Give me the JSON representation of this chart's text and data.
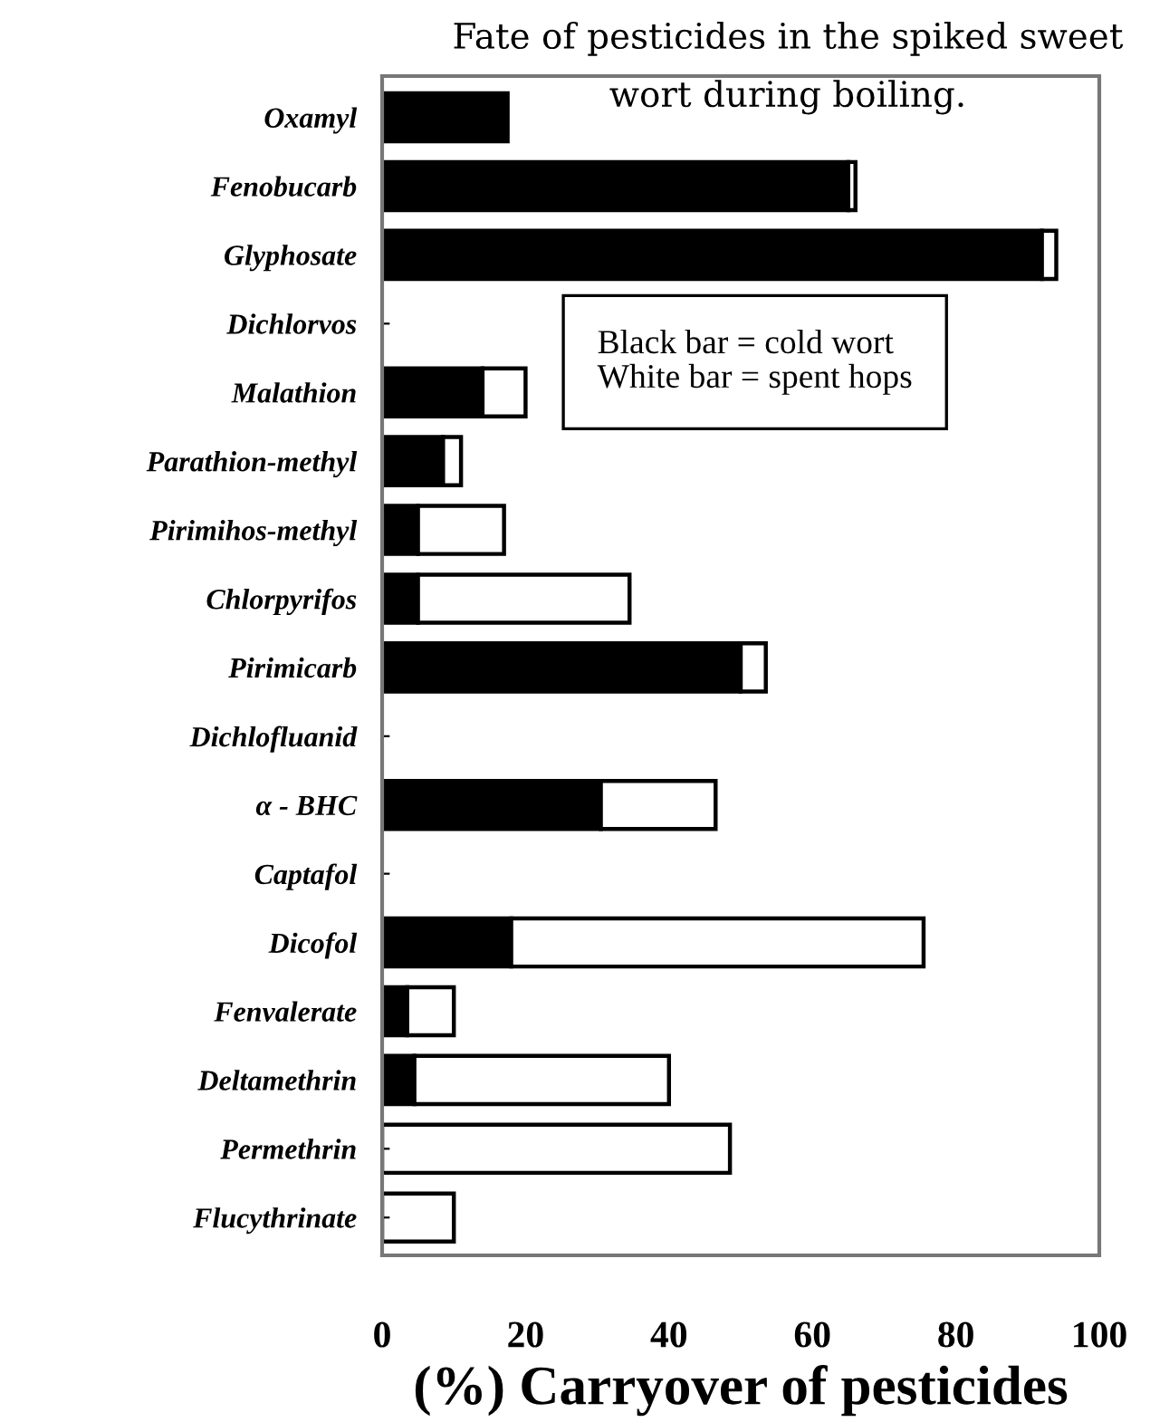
{
  "chart_data": {
    "type": "bar",
    "orientation": "horizontal",
    "stacked": true,
    "title": "Fate of pesticides in the spiked sweet\nwort during boiling.",
    "xlabel": "(%) Carryover of pesticides",
    "categories": [
      "Oxamyl",
      "Fenobucarb",
      "Glyphosate",
      "Dichlorvos",
      "Malathion",
      "Parathion-methyl",
      "Pirimihos-methyl",
      "Chlorpyrifos",
      "Pirimicarb",
      "Dichlofluanid",
      "α - BHC",
      "Captafol",
      "Dicofol",
      "Fenvalerate",
      "Deltamethrin",
      "Permethrin",
      "Flucythrinate"
    ],
    "series": [
      {
        "color": "#000000",
        "values": [
          17.5,
          65,
          92,
          0,
          14,
          8.5,
          5,
          5,
          50,
          0,
          30.5,
          0,
          18,
          3.5,
          4.5,
          0,
          0
        ]
      },
      {
        "color": "#ffffff",
        "values": [
          0,
          1,
          2,
          0,
          6,
          2.5,
          12,
          29.5,
          3.5,
          0,
          16,
          0,
          57.5,
          6.5,
          35.5,
          48.5,
          10
        ]
      }
    ],
    "xlim": [
      0,
      100
    ],
    "xticks": [
      0,
      20,
      40,
      60,
      80,
      100
    ],
    "grid": false,
    "annotations": [
      "Black bar = cold wort\nWhite bar = spent hops"
    ]
  }
}
